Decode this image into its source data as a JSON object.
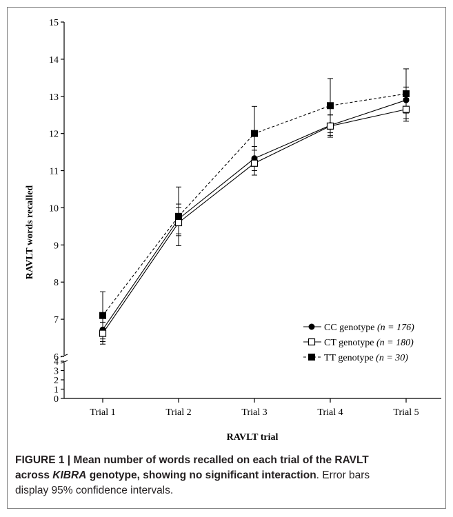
{
  "chart_data": {
    "type": "line",
    "categories": [
      "Trial 1",
      "Trial 2",
      "Trial 3",
      "Trial 4",
      "Trial 5"
    ],
    "series": [
      {
        "name": "CC genotype",
        "n_label": "(n = 176)",
        "marker": "filled-circle",
        "line_style": "solid",
        "values": [
          6.72,
          9.7,
          11.33,
          12.22,
          12.9
        ],
        "ci_low": [
          6.4,
          9.3,
          11.0,
          11.95,
          12.55
        ],
        "ci_high": [
          7.05,
          10.1,
          11.65,
          12.5,
          13.25
        ]
      },
      {
        "name": "CT genotype",
        "n_label": "(n = 180)",
        "marker": "open-square",
        "line_style": "solid",
        "values": [
          6.62,
          9.6,
          11.2,
          12.2,
          12.65
        ],
        "ci_low": [
          6.33,
          9.25,
          10.88,
          11.9,
          12.33
        ],
        "ci_high": [
          6.92,
          10.0,
          11.55,
          12.5,
          12.95
        ]
      },
      {
        "name": "TT genotype",
        "n_label": "(n = 30)",
        "marker": "filled-square",
        "line_style": "dashed",
        "values": [
          7.1,
          9.77,
          12.0,
          12.75,
          13.07
        ],
        "ci_low": [
          6.47,
          8.98,
          11.27,
          12.02,
          12.4
        ],
        "ci_high": [
          7.74,
          10.56,
          12.73,
          13.48,
          13.74
        ]
      }
    ],
    "ylabel": "RAVLT words recalled",
    "xlabel": "RAVLT trial",
    "y_upper_range": [
      6,
      15
    ],
    "y_upper_ticks": [
      "6",
      "7",
      "8",
      "9",
      "10",
      "11",
      "12",
      "13",
      "14",
      "15"
    ],
    "y_lower_range": [
      0,
      4
    ],
    "y_lower_ticks": [
      "0",
      "1",
      "2",
      "3",
      "4"
    ],
    "y_axis_break": true,
    "grid": false,
    "legend_position": "bottom-right"
  },
  "caption": {
    "figure_label": "FIGURE 1 |",
    "bold_part1": "Mean number of words recalled on each trial of the RAVLT",
    "bold_part2a": "across ",
    "bold_italic": "KIBRA",
    "bold_part2b": " genotype, showing no significant interaction",
    "normal_part1": ". Error bars",
    "normal_part2": "display 95% confidence intervals."
  }
}
